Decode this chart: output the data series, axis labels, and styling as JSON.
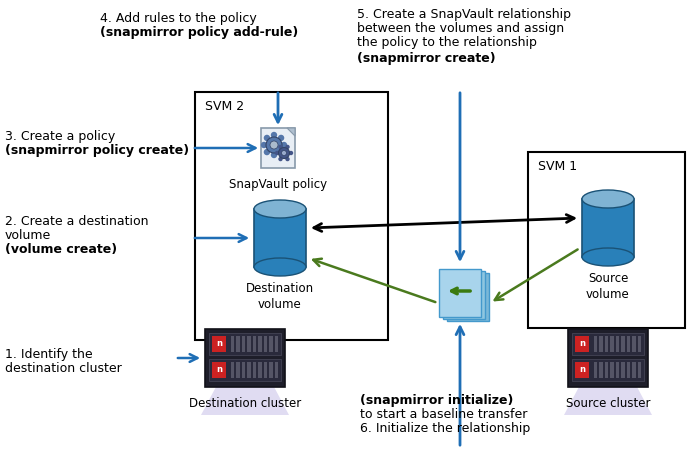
{
  "background_color": "#ffffff",
  "svm2_label": "SVM 2",
  "svm1_label": "SVM 1",
  "dest_vol_label": "Destination\nvolume",
  "src_vol_label": "Source\nvolume",
  "snapvault_policy_label": "SnapVault policy",
  "dest_cluster_label": "Destination cluster",
  "src_cluster_label": "Source cluster",
  "step1_line1": "1. Identify the",
  "step1_line2": "destination cluster",
  "step2_line1": "2. Create a destination",
  "step2_line2": "volume",
  "step2_line3": "(volume create)",
  "step3_line1": "3. Create a policy",
  "step3_line2": "(snapmirror policy create)",
  "step4_line1": "4. Add rules to the policy",
  "step4_line2": "(snapmirror policy add-rule)",
  "step5_line1": "5. Create a SnapVault relationship",
  "step5_line2": "between the volumes and assign",
  "step5_line3": "the policy to the relationship",
  "step5_line4": "(snapmirror create)",
  "step6_line1": "6. Initialize the relationship",
  "step6_line2": "to start a baseline transfer",
  "step6_line3": "(snapmirror initialize)",
  "blue": "#1f6eb5",
  "dark_blue": "#1a5276",
  "mid_blue": "#2980b9",
  "light_blue": "#7fb3d3",
  "pale_blue": "#aed6f1",
  "green": "#4a7a1e",
  "black": "#000000",
  "gray_dark": "#2c2c3a",
  "gray_mid": "#3a3a4a",
  "red_logo": "#c0392b"
}
